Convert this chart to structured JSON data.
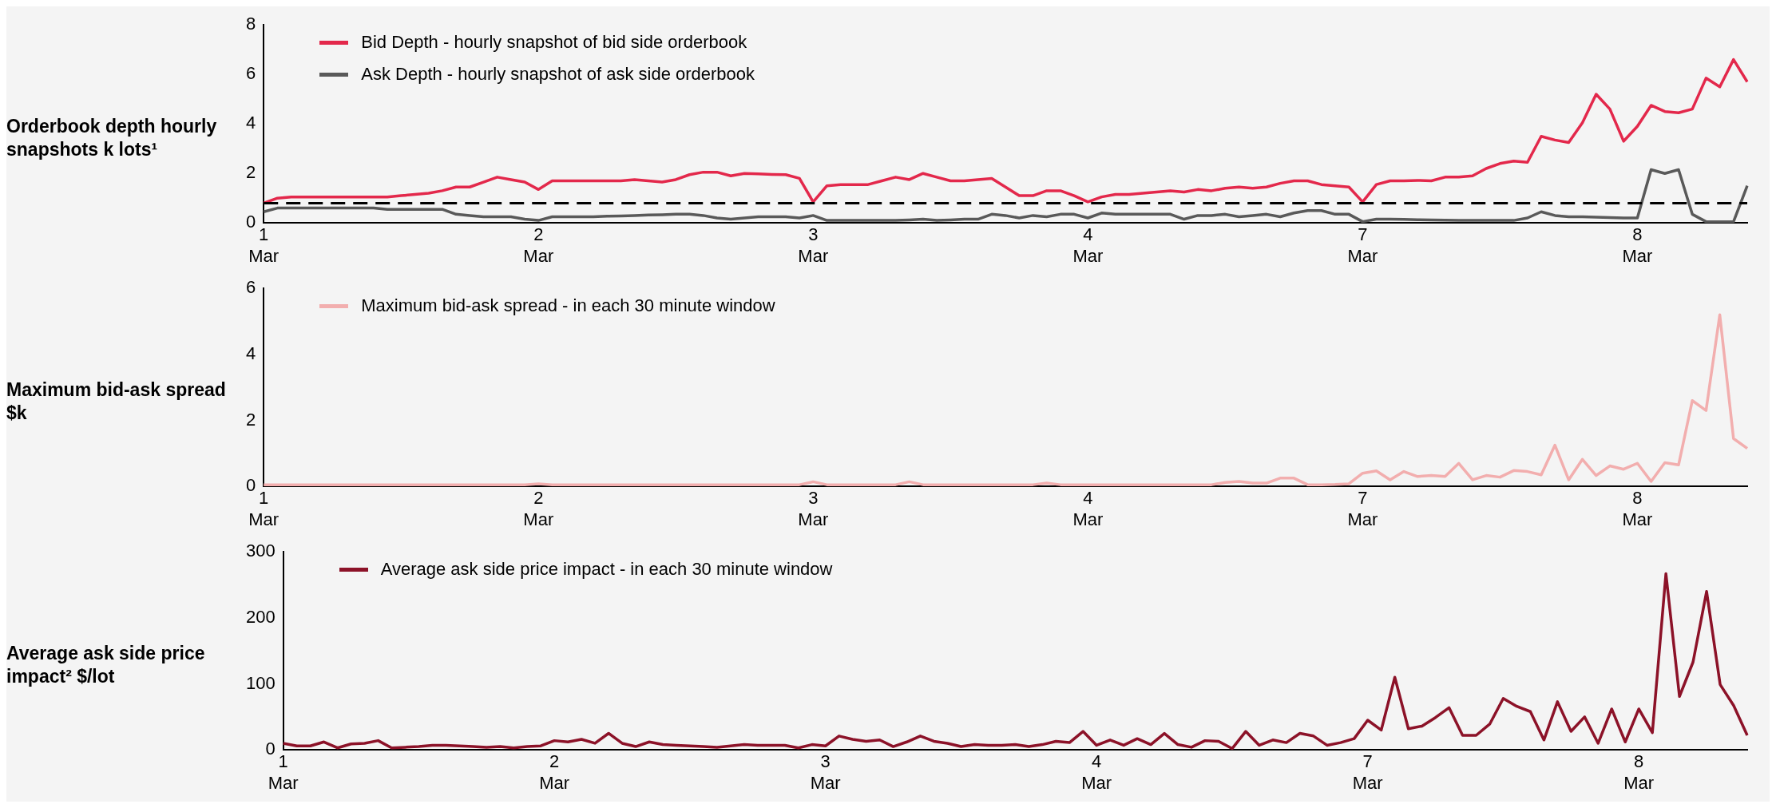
{
  "chart_data": [
    {
      "type": "line",
      "ylabel": "Orderbook depth hourly snapshots k lots¹",
      "categories": [
        "1\nMar",
        null,
        null,
        null,
        null,
        null,
        null,
        null,
        null,
        null,
        null,
        null,
        null,
        null,
        null,
        null,
        null,
        null,
        null,
        null,
        "2\nMar",
        null,
        null,
        null,
        null,
        null,
        null,
        null,
        null,
        null,
        null,
        null,
        null,
        null,
        null,
        null,
        null,
        null,
        null,
        null,
        "3\nMar",
        null,
        null,
        null,
        null,
        null,
        null,
        null,
        null,
        null,
        null,
        null,
        null,
        null,
        null,
        null,
        null,
        null,
        null,
        null,
        "4\nMar",
        null,
        null,
        null,
        null,
        null,
        null,
        null,
        null,
        null,
        null,
        null,
        null,
        null,
        null,
        null,
        null,
        null,
        null,
        null,
        "7\nMar",
        null,
        null,
        null,
        null,
        null,
        null,
        null,
        null,
        null,
        null,
        null,
        null,
        null,
        null,
        null,
        null,
        null,
        null,
        null,
        "8\nMar",
        null,
        null,
        null,
        null,
        null,
        null,
        null,
        null
      ],
      "ylim": [
        0,
        8
      ],
      "yticks": [
        0,
        2,
        4,
        6,
        8
      ],
      "grid": false,
      "legend": "top left",
      "line_style": "solid",
      "ref_lines": [
        {
          "axis": "y",
          "value": 0.8,
          "color": "#000000",
          "line_style": "dashed"
        }
      ],
      "series": [
        {
          "name": "Bid Depth - hourly snapshot of bid side orderbook",
          "color": "#e3284b",
          "values": [
            0.8,
            1.0,
            1.05,
            1.05,
            1.05,
            1.05,
            1.05,
            1.05,
            1.05,
            1.05,
            1.1,
            1.15,
            1.2,
            1.3,
            1.45,
            1.45,
            1.65,
            1.85,
            1.75,
            1.65,
            1.35,
            1.7,
            1.7,
            1.7,
            1.7,
            1.7,
            1.7,
            1.75,
            1.7,
            1.65,
            1.75,
            1.95,
            2.05,
            2.05,
            1.9,
            2.0,
            1.98,
            1.96,
            1.95,
            1.8,
            0.85,
            1.5,
            1.55,
            1.55,
            1.55,
            1.7,
            1.85,
            1.75,
            2.0,
            1.85,
            1.7,
            1.7,
            1.75,
            1.8,
            1.45,
            1.1,
            1.1,
            1.3,
            1.3,
            1.1,
            0.85,
            1.05,
            1.15,
            1.15,
            1.2,
            1.25,
            1.3,
            1.25,
            1.35,
            1.3,
            1.4,
            1.45,
            1.4,
            1.45,
            1.6,
            1.7,
            1.7,
            1.55,
            1.5,
            1.45,
            0.85,
            1.55,
            1.7,
            1.7,
            1.72,
            1.7,
            1.85,
            1.85,
            1.9,
            2.2,
            2.4,
            2.5,
            2.45,
            3.5,
            3.35,
            3.25,
            4.05,
            5.2,
            4.6,
            3.3,
            3.9,
            4.75,
            4.5,
            4.45,
            4.6,
            5.85,
            5.5,
            6.6,
            5.7
          ]
        },
        {
          "name": "Ask Depth - hourly snapshot of ask side orderbook",
          "color": "#595959",
          "values": [
            0.45,
            0.6,
            0.6,
            0.6,
            0.6,
            0.6,
            0.6,
            0.6,
            0.6,
            0.55,
            0.55,
            0.55,
            0.55,
            0.55,
            0.35,
            0.3,
            0.25,
            0.25,
            0.25,
            0.15,
            0.1,
            0.25,
            0.25,
            0.25,
            0.25,
            0.27,
            0.28,
            0.3,
            0.32,
            0.33,
            0.35,
            0.35,
            0.3,
            0.2,
            0.15,
            0.2,
            0.25,
            0.25,
            0.25,
            0.2,
            0.3,
            0.1,
            0.1,
            0.1,
            0.1,
            0.1,
            0.1,
            0.12,
            0.15,
            0.1,
            0.12,
            0.15,
            0.15,
            0.35,
            0.3,
            0.2,
            0.3,
            0.25,
            0.35,
            0.35,
            0.2,
            0.4,
            0.35,
            0.35,
            0.35,
            0.35,
            0.35,
            0.15,
            0.3,
            0.3,
            0.35,
            0.25,
            0.3,
            0.35,
            0.25,
            0.4,
            0.5,
            0.5,
            0.35,
            0.35,
            0.05,
            0.15,
            0.15,
            0.14,
            0.13,
            0.12,
            0.11,
            0.1,
            0.1,
            0.1,
            0.1,
            0.1,
            0.2,
            0.45,
            0.3,
            0.25,
            0.25,
            0.23,
            0.22,
            0.2,
            0.2,
            2.15,
            2.0,
            2.15,
            0.35,
            0.05,
            0.05,
            0.05,
            1.5
          ]
        }
      ]
    },
    {
      "type": "line",
      "ylabel": "Maximum bid-ask spread $k",
      "categories": [
        "1\nMar",
        null,
        null,
        null,
        null,
        null,
        null,
        null,
        null,
        null,
        null,
        null,
        null,
        null,
        null,
        null,
        null,
        null,
        null,
        null,
        "2\nMar",
        null,
        null,
        null,
        null,
        null,
        null,
        null,
        null,
        null,
        null,
        null,
        null,
        null,
        null,
        null,
        null,
        null,
        null,
        null,
        "3\nMar",
        null,
        null,
        null,
        null,
        null,
        null,
        null,
        null,
        null,
        null,
        null,
        null,
        null,
        null,
        null,
        null,
        null,
        null,
        null,
        "4\nMar",
        null,
        null,
        null,
        null,
        null,
        null,
        null,
        null,
        null,
        null,
        null,
        null,
        null,
        null,
        null,
        null,
        null,
        null,
        null,
        "7\nMar",
        null,
        null,
        null,
        null,
        null,
        null,
        null,
        null,
        null,
        null,
        null,
        null,
        null,
        null,
        null,
        null,
        null,
        null,
        null,
        "8\nMar",
        null,
        null,
        null,
        null,
        null,
        null,
        null,
        null
      ],
      "ylim": [
        0,
        6
      ],
      "yticks": [
        0,
        2,
        4,
        6
      ],
      "grid": false,
      "legend": "top left",
      "line_style": "solid",
      "series": [
        {
          "name": "Maximum bid-ask spread - in each 30 minute window",
          "color": "#f2aeae",
          "values": [
            0.05,
            0.05,
            0.05,
            0.05,
            0.05,
            0.05,
            0.05,
            0.05,
            0.05,
            0.05,
            0.05,
            0.05,
            0.05,
            0.05,
            0.05,
            0.05,
            0.05,
            0.05,
            0.05,
            0.05,
            0.08,
            0.05,
            0.05,
            0.05,
            0.05,
            0.05,
            0.05,
            0.05,
            0.05,
            0.05,
            0.05,
            0.05,
            0.05,
            0.05,
            0.05,
            0.05,
            0.05,
            0.05,
            0.05,
            0.05,
            0.14,
            0.05,
            0.05,
            0.05,
            0.05,
            0.05,
            0.05,
            0.14,
            0.05,
            0.05,
            0.05,
            0.05,
            0.05,
            0.05,
            0.05,
            0.05,
            0.05,
            0.1,
            0.05,
            0.05,
            0.05,
            0.05,
            0.05,
            0.05,
            0.05,
            0.05,
            0.05,
            0.05,
            0.05,
            0.05,
            0.12,
            0.15,
            0.1,
            0.1,
            0.25,
            0.25,
            0.05,
            0.05,
            0.06,
            0.08,
            0.4,
            0.47,
            0.2,
            0.45,
            0.3,
            0.33,
            0.3,
            0.7,
            0.2,
            0.33,
            0.28,
            0.48,
            0.45,
            0.35,
            1.25,
            0.2,
            0.82,
            0.33,
            0.62,
            0.52,
            0.7,
            0.15,
            0.72,
            0.65,
            2.6,
            2.3,
            5.2,
            1.45,
            1.15
          ]
        }
      ]
    },
    {
      "type": "line",
      "ylabel": "Average ask side price impact² $/lot",
      "categories": [
        "1\nMar",
        null,
        null,
        null,
        null,
        null,
        null,
        null,
        null,
        null,
        null,
        null,
        null,
        null,
        null,
        null,
        null,
        null,
        null,
        null,
        "2\nMar",
        null,
        null,
        null,
        null,
        null,
        null,
        null,
        null,
        null,
        null,
        null,
        null,
        null,
        null,
        null,
        null,
        null,
        null,
        null,
        "3\nMar",
        null,
        null,
        null,
        null,
        null,
        null,
        null,
        null,
        null,
        null,
        null,
        null,
        null,
        null,
        null,
        null,
        null,
        null,
        null,
        "4\nMar",
        null,
        null,
        null,
        null,
        null,
        null,
        null,
        null,
        null,
        null,
        null,
        null,
        null,
        null,
        null,
        null,
        null,
        null,
        null,
        "7\nMar",
        null,
        null,
        null,
        null,
        null,
        null,
        null,
        null,
        null,
        null,
        null,
        null,
        null,
        null,
        null,
        null,
        null,
        null,
        null,
        "8\nMar",
        null,
        null,
        null,
        null,
        null,
        null,
        null,
        null
      ],
      "ylim": [
        0,
        300
      ],
      "yticks": [
        0,
        100,
        200,
        300
      ],
      "grid": false,
      "legend": "top left",
      "line_style": "solid",
      "series": [
        {
          "name": "Average ask side price impact - in each 30 minute window",
          "color": "#8c1228",
          "values": [
            10,
            6,
            6,
            12,
            3,
            9,
            10,
            14,
            3,
            4,
            5,
            7,
            7,
            6,
            5,
            4,
            5,
            3,
            5,
            6,
            14,
            12,
            16,
            10,
            25,
            10,
            5,
            12,
            8,
            7,
            6,
            5,
            4,
            6,
            8,
            7,
            7,
            7,
            3,
            8,
            6,
            21,
            16,
            13,
            15,
            5,
            12,
            21,
            13,
            10,
            5,
            8,
            7,
            7,
            8,
            5,
            8,
            13,
            11,
            28,
            7,
            15,
            7,
            17,
            8,
            25,
            8,
            4,
            14,
            13,
            2,
            28,
            7,
            15,
            11,
            25,
            21,
            7,
            11,
            17,
            45,
            30,
            110,
            32,
            36,
            49,
            64,
            22,
            22,
            39,
            78,
            66,
            58,
            15,
            73,
            28,
            50,
            10,
            62,
            12,
            62,
            26,
            267,
            81,
            133,
            240,
            99,
            67,
            22
          ]
        }
      ]
    }
  ]
}
